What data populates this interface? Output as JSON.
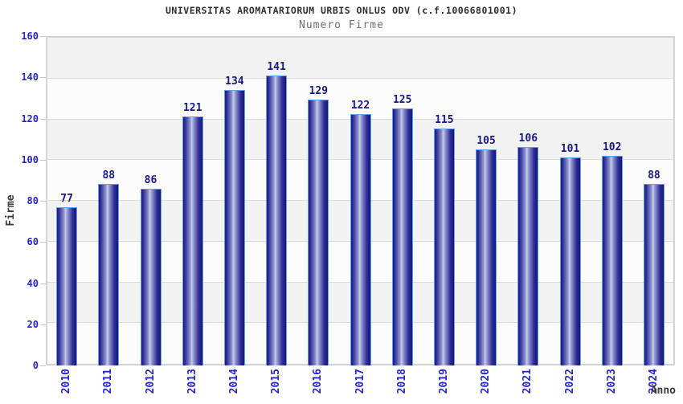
{
  "chart_data": {
    "type": "bar",
    "title": "UNIVERSITAS AROMATARIORUM URBIS ONLUS ODV (c.f.10066801001)",
    "subtitle": "Numero Firme",
    "xlabel": "Anno",
    "ylabel": "Firme",
    "categories": [
      "2010",
      "2011",
      "2012",
      "2013",
      "2014",
      "2015",
      "2016",
      "2017",
      "2018",
      "2019",
      "2020",
      "2021",
      "2022",
      "2023",
      "2024"
    ],
    "values": [
      77,
      88,
      86,
      121,
      134,
      141,
      129,
      122,
      125,
      115,
      105,
      106,
      101,
      102,
      88
    ],
    "ylim": [
      0,
      160
    ],
    "ytick_step": 20,
    "yticks": [
      0,
      20,
      40,
      60,
      80,
      100,
      120,
      140,
      160
    ],
    "grid": true,
    "legend_position": "none",
    "colors": {
      "bar_dark": "#1b1b86",
      "bar_mid": "#30309a",
      "bar_light": "#c7cbe8",
      "bar_border": "#64a2e8",
      "band_gray": "#f2f2f2",
      "band_white": "#fcfcfc",
      "gridline": "#dcdcdc",
      "plot_border": "#d3d3d3",
      "axis_tick_label": "#2424cc",
      "value_label": "#171787",
      "title_color": "#2f2f2f",
      "subtitle_color": "#6e6e6e",
      "axis_title_color": "#3a3a3a"
    }
  }
}
